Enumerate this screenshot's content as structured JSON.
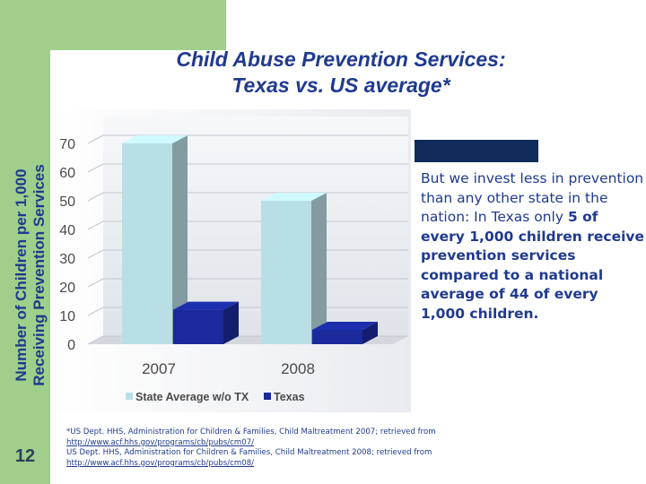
{
  "slide": {
    "title_line1": "Child Abuse Prevention Services:",
    "title_line2": "Texas vs. US average*",
    "callout_text_1": "But we invest less in prevention than any other state in the nation: In Texas only ",
    "callout_text_2": "5 of every 1,000 children receive prevention services compared to a national average of 44 of every 1,000 children.",
    "footnote_1": "*US Dept. HHS, Administration for Children & Families, Child Maltreatment 2007; retrieved from",
    "footnote_2": "http://www.acf.hhs.gov/programs/cb/pubs/cm07/",
    "footnote_3": "US Dept. HHS, Administration for Children & Families, Child Maltreatment 2008; retrieved from",
    "footnote_4": "http://www.acf.hhs.gov/programs/cb/pubs/cm08/",
    "page_number": "12"
  },
  "colors": {
    "accent_green": "#9fcf8b",
    "title_blue": "#1f3a8f",
    "state_average": "#b9dfe6",
    "texas": "#1a2a9c",
    "callout_bar": "#0f2c5a"
  },
  "chart_data": {
    "type": "bar",
    "ylabel_line1": "Number of Children per 1,000",
    "ylabel_line2": "Receiving Prevention Services",
    "categories": [
      "2007",
      "2008"
    ],
    "yticks": [
      "0",
      "10",
      "20",
      "30",
      "40",
      "50",
      "60",
      "70"
    ],
    "ylim": [
      0,
      70
    ],
    "grid": true,
    "legend_position": "bottom",
    "series": [
      {
        "name": "State Average w/o TX",
        "values": [
          70,
          50
        ],
        "color": "#b9dfe6"
      },
      {
        "name": "Texas",
        "values": [
          12,
          5
        ],
        "color": "#1a2a9c"
      }
    ]
  }
}
